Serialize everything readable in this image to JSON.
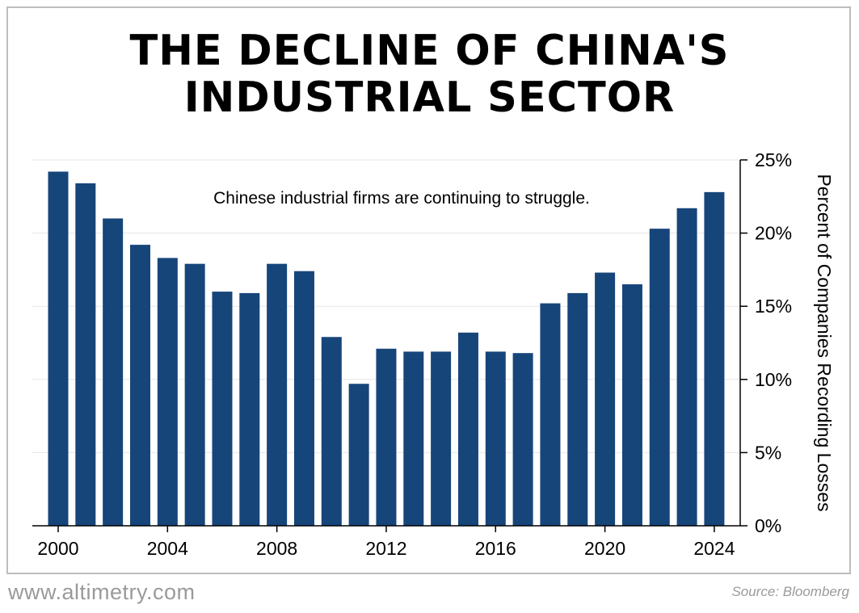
{
  "title_line1": "THE DECLINE OF CHINA'S",
  "title_line2": "INDUSTRIAL SECTOR",
  "footer_left": "www.altimetry.com",
  "footer_right": "Source: Bloomberg",
  "colors": {
    "bar": "#16457a",
    "grid": "#e6e6e6",
    "axis": "#000000"
  },
  "chart_data": {
    "type": "bar",
    "annotation": "Chinese industrial firms are continuing to struggle.",
    "ylabel": "Percent of Companies Recording Losses",
    "y_axis_side": "right",
    "ylim": [
      0,
      25
    ],
    "yticks": [
      "0%",
      "5%",
      "10%",
      "15%",
      "20%",
      "25%"
    ],
    "ytick_values": [
      0,
      5,
      10,
      15,
      20,
      25
    ],
    "xtick_labels": [
      "2000",
      "2004",
      "2008",
      "2012",
      "2016",
      "2020",
      "2024"
    ],
    "xtick_years": [
      2000,
      2004,
      2008,
      2012,
      2016,
      2020,
      2024
    ],
    "grid": "horizontal",
    "categories": [
      2000,
      2001,
      2002,
      2003,
      2004,
      2005,
      2006,
      2007,
      2008,
      2009,
      2010,
      2011,
      2012,
      2013,
      2014,
      2015,
      2016,
      2017,
      2018,
      2019,
      2020,
      2021,
      2022,
      2023,
      2024
    ],
    "values": [
      24.2,
      23.4,
      21.0,
      19.2,
      18.3,
      17.9,
      16.0,
      15.9,
      17.9,
      17.4,
      12.9,
      9.7,
      12.1,
      11.9,
      11.9,
      13.2,
      11.9,
      11.8,
      15.2,
      15.9,
      17.3,
      16.5,
      20.3,
      21.7,
      22.8
    ]
  }
}
